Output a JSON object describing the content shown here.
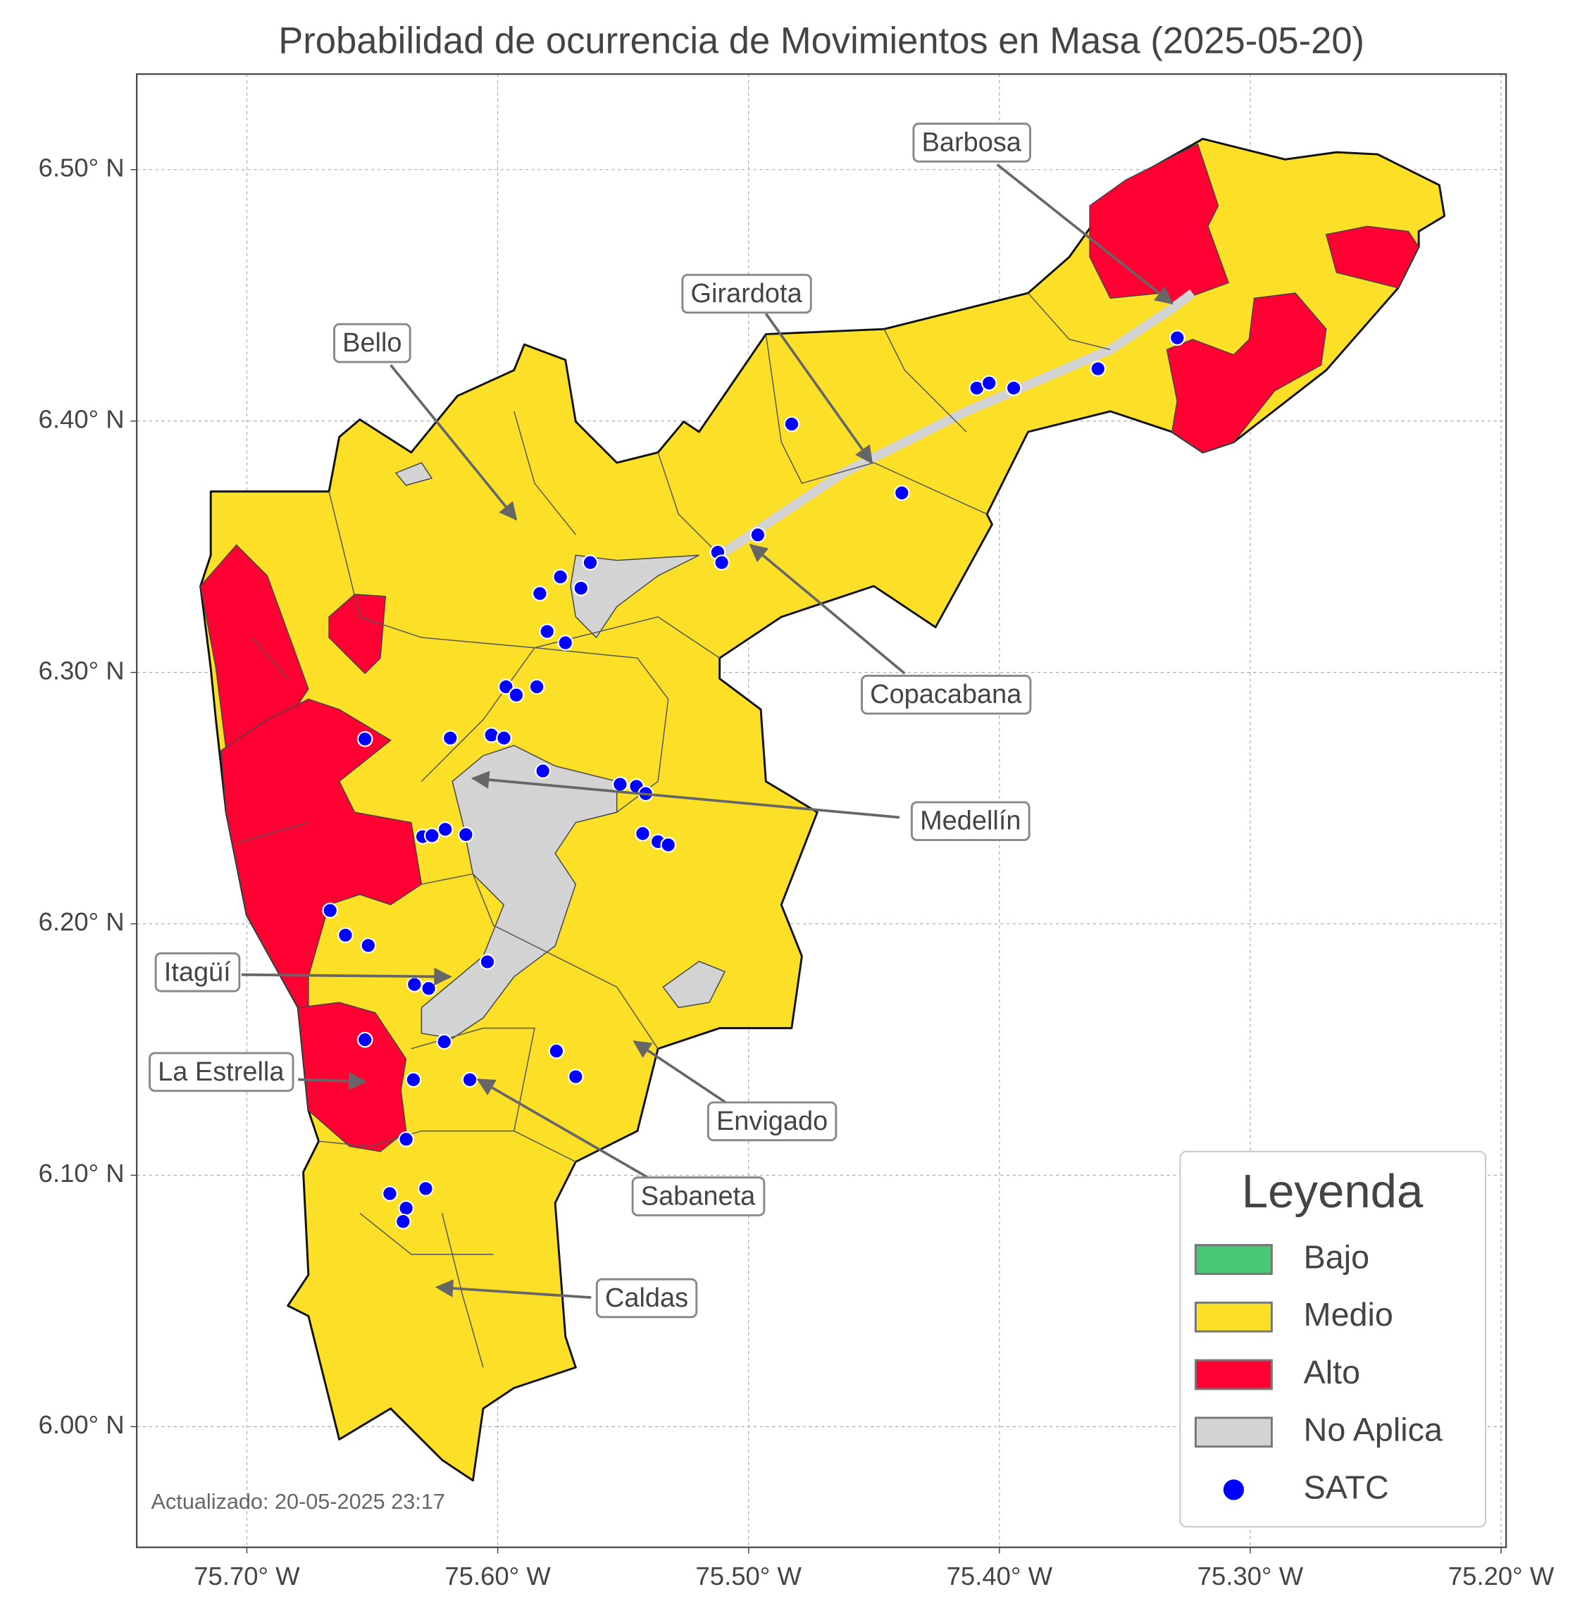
{
  "chart_data": {
    "type": "map",
    "title": "Probabilidad de ocurrencia de Movimientos en Masa (2025-05-20)",
    "xlim": [
      -75.7439,
      -75.198
    ],
    "ylim": [
      5.952,
      6.538
    ],
    "xticks": [
      {
        "value": -75.7,
        "label": "75.70° W"
      },
      {
        "value": -75.6,
        "label": "75.60° W"
      },
      {
        "value": -75.5,
        "label": "75.50° W"
      },
      {
        "value": -75.4,
        "label": "75.40° W"
      },
      {
        "value": -75.3,
        "label": "75.30° W"
      },
      {
        "value": -75.2,
        "label": "75.20° W"
      }
    ],
    "yticks": [
      {
        "value": 6.0,
        "label": "6.00° N"
      },
      {
        "value": 6.1,
        "label": "6.10° N"
      },
      {
        "value": 6.2,
        "label": "6.20° N"
      },
      {
        "value": 6.3,
        "label": "6.30° N"
      },
      {
        "value": 6.4,
        "label": "6.40° N"
      },
      {
        "value": 6.5,
        "label": "6.50° N"
      }
    ],
    "grid": true,
    "legend": {
      "title": "Leyenda",
      "position": "lower right",
      "items": [
        {
          "name": "Bajo",
          "color": "#48c774"
        },
        {
          "name": "Medio",
          "color": "#fce028"
        },
        {
          "name": "Alto",
          "color": "#ff0033"
        },
        {
          "name": "No Aplica",
          "color": "#d3d3d3"
        }
      ]
    },
    "series": [
      {
        "name": "SATC",
        "color": "#0000ff",
        "x": [
          -75.4828,
          -75.409,
          -75.4041,
          -75.3943,
          -75.3607,
          -75.3291,
          -75.4389,
          -75.4963,
          -75.5123,
          -75.5107,
          -75.5631,
          -75.575,
          -75.5832,
          -75.5668,
          -75.5803,
          -75.573,
          -75.5967,
          -75.5926,
          -75.5844,
          -75.6189,
          -75.6025,
          -75.5975,
          -75.6529,
          -75.582,
          -75.5512,
          -75.5447,
          -75.541,
          -75.5422,
          -75.5361,
          -75.532,
          -75.6299,
          -75.6262,
          -75.6209,
          -75.6127,
          -75.6668,
          -75.6607,
          -75.6516,
          -75.6041,
          -75.6332,
          -75.6275,
          -75.6529,
          -75.6213,
          -75.5766,
          -75.5689,
          -75.6336,
          -75.6111,
          -75.6365,
          -75.643,
          -75.6365,
          -75.6377,
          -75.6287
        ],
        "y": [
          6.3988,
          6.4131,
          6.4151,
          6.4131,
          6.4208,
          6.4331,
          6.3714,
          6.3547,
          6.3478,
          6.3437,
          6.3437,
          6.338,
          6.3314,
          6.3335,
          6.3163,
          6.3118,
          6.2943,
          6.291,
          6.2943,
          6.2739,
          6.2751,
          6.2739,
          6.2735,
          6.2608,
          6.2555,
          6.2547,
          6.2518,
          6.2359,
          6.2327,
          6.2314,
          6.2347,
          6.2351,
          6.2376,
          6.2355,
          6.2053,
          6.1955,
          6.1914,
          6.1849,
          6.1759,
          6.1743,
          6.1539,
          6.1531,
          6.1494,
          6.1392,
          6.138,
          6.138,
          6.1143,
          6.0927,
          6.0869,
          6.0816,
          6.0947
        ]
      }
    ],
    "annotations": [
      {
        "text": "Barbosa"
      },
      {
        "text": "Girardota"
      },
      {
        "text": "Bello"
      },
      {
        "text": "Copacabana"
      },
      {
        "text": "Medellín"
      },
      {
        "text": "Itagüí"
      },
      {
        "text": "La Estrella"
      },
      {
        "text": "Envigado"
      },
      {
        "text": "Sabaneta"
      },
      {
        "text": "Caldas"
      }
    ],
    "footnote": "Actualizado: 20-05-2025 23:17"
  }
}
